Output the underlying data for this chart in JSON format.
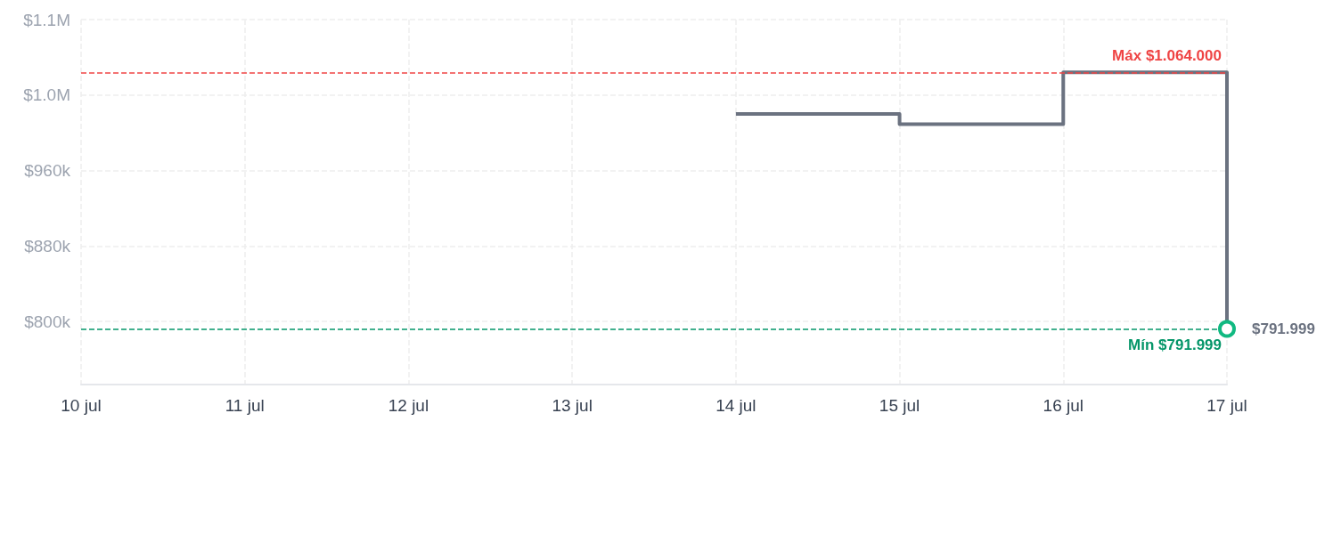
{
  "chart_data": {
    "type": "step",
    "x": [
      "--07-14",
      "--07-15",
      "--07-16",
      "--07-17"
    ],
    "series": [
      {
        "color": "#6b7280",
        "values": [
          1020000,
          1009000,
          1064000,
          791999
        ]
      }
    ],
    "xlim": [
      "--07-10",
      "--07-17"
    ],
    "xticks": [
      {
        "value": "--07-10",
        "label": "10 jul"
      },
      {
        "value": "--07-11",
        "label": "11 jul"
      },
      {
        "value": "--07-12",
        "label": "12 jul"
      },
      {
        "value": "--07-13",
        "label": "13 jul"
      },
      {
        "value": "--07-14",
        "label": "14 jul"
      },
      {
        "value": "--07-15",
        "label": "15 jul"
      },
      {
        "value": "--07-16",
        "label": "16 jul"
      },
      {
        "value": "--07-17",
        "label": "17 jul"
      }
    ],
    "ylim": [
      733000,
      1120000
    ],
    "yticks": [
      {
        "value": 800000,
        "label": "$800k"
      },
      {
        "value": 880000,
        "label": "$880k"
      },
      {
        "value": 960000,
        "label": "$960k"
      },
      {
        "value": 1040000,
        "label": "$1.0M"
      },
      {
        "value": 1120000,
        "label": "$1.1M"
      }
    ],
    "ref_lines": [
      {
        "axis": "y",
        "value": 1064000,
        "label": "Máx $1.064.000",
        "color": "#ef4444",
        "line_style": "dashed"
      },
      {
        "axis": "y",
        "value": 791999,
        "label": "Mín $791.999",
        "color": "#059669",
        "line_style": "dashed"
      }
    ],
    "annotations": [
      {
        "text": "$791.999",
        "x": "--07-17",
        "y": 791999
      }
    ],
    "grid": true,
    "marker": "none",
    "line_style": "solid"
  }
}
